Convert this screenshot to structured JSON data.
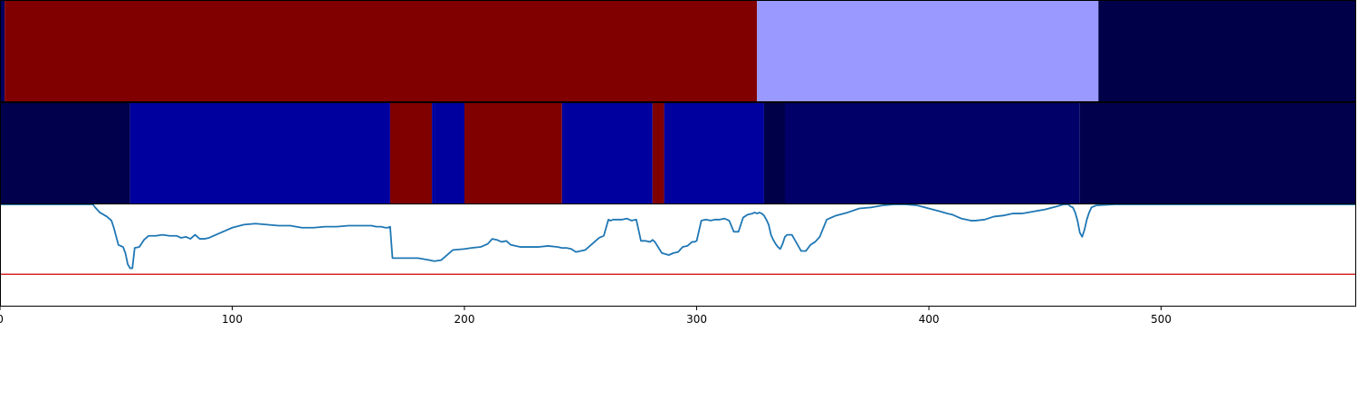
{
  "chart_data": {
    "type": "heatmap",
    "title": "",
    "xlabel": "",
    "ylabel": "",
    "xlim": [
      0,
      584
    ],
    "xticks": [
      0,
      100,
      200,
      300,
      400,
      500
    ],
    "xtick_labels": [
      "0",
      "100",
      "200",
      "300",
      "400",
      "500"
    ],
    "segment_rows": [
      {
        "name": "",
        "segments": [
          {
            "start": 0,
            "end": 2,
            "color": "#000060"
          },
          {
            "start": 2,
            "end": 326,
            "color": "#800000"
          },
          {
            "start": 326,
            "end": 473,
            "color": "#9999ff"
          },
          {
            "start": 473,
            "end": 584,
            "color": "#000048"
          }
        ]
      },
      {
        "name": "",
        "segments": [
          {
            "start": 0,
            "end": 56,
            "color": "#00004c"
          },
          {
            "start": 56,
            "end": 168,
            "color": "#00009e"
          },
          {
            "start": 168,
            "end": 186,
            "color": "#800000"
          },
          {
            "start": 186,
            "end": 187.5,
            "color": "#00009e"
          },
          {
            "start": 187.5,
            "end": 200,
            "color": "#00009e"
          },
          {
            "start": 200,
            "end": 242,
            "color": "#800000"
          },
          {
            "start": 242,
            "end": 281,
            "color": "#00009e"
          },
          {
            "start": 281,
            "end": 286,
            "color": "#800000"
          },
          {
            "start": 286,
            "end": 329,
            "color": "#00009e"
          },
          {
            "start": 329,
            "end": 338,
            "color": "#000048"
          },
          {
            "start": 338,
            "end": 465,
            "color": "#000068"
          },
          {
            "start": 465,
            "end": 584,
            "color": "#00004c"
          }
        ]
      }
    ],
    "line_panel": {
      "ylim": [
        0,
        1
      ],
      "threshold": {
        "value": 0.31,
        "color": "#d62728"
      },
      "series": [
        {
          "name": "",
          "color": "#1f77b4",
          "x": [
            0,
            40,
            41,
            43,
            46,
            48,
            49,
            51,
            53,
            54,
            55,
            56,
            57,
            58,
            60,
            62,
            64,
            67,
            70,
            73,
            76,
            78,
            80,
            82,
            84,
            86,
            88,
            90,
            95,
            100,
            105,
            110,
            115,
            120,
            125,
            130,
            135,
            140,
            145,
            150,
            155,
            160,
            162,
            164,
            166,
            167,
            168,
            169,
            170,
            175,
            180,
            185,
            187,
            190,
            195,
            200,
            203,
            207,
            210,
            212,
            214,
            216,
            218,
            220,
            224,
            228,
            232,
            236,
            240,
            242,
            244,
            246,
            248,
            252,
            256,
            258,
            260,
            262,
            263,
            264,
            266,
            268,
            270,
            272,
            274,
            276,
            278,
            280,
            281,
            282,
            285,
            288,
            290,
            292,
            294,
            296,
            298,
            299,
            300,
            302,
            304,
            306,
            308,
            310,
            312,
            314,
            316,
            318,
            320,
            322,
            324,
            325,
            326,
            327,
            328,
            329,
            330,
            331,
            332,
            333,
            334,
            335,
            336,
            337,
            338,
            339,
            340,
            341,
            342,
            343,
            345,
            347,
            349,
            351,
            353,
            356,
            360,
            365,
            370,
            375,
            380,
            385,
            390,
            395,
            400,
            405,
            408,
            410,
            412,
            414,
            416,
            418,
            420,
            424,
            428,
            432,
            436,
            440,
            445,
            450,
            455,
            458,
            460,
            461,
            462,
            463,
            464,
            465,
            466,
            467,
            468,
            469,
            470,
            472,
            480,
            584
          ],
          "y": [
            1.0,
            1.0,
            0.97,
            0.92,
            0.88,
            0.84,
            0.77,
            0.6,
            0.58,
            0.52,
            0.41,
            0.37,
            0.37,
            0.57,
            0.58,
            0.65,
            0.69,
            0.69,
            0.7,
            0.69,
            0.69,
            0.67,
            0.68,
            0.66,
            0.7,
            0.66,
            0.66,
            0.67,
            0.72,
            0.77,
            0.8,
            0.81,
            0.8,
            0.79,
            0.79,
            0.77,
            0.77,
            0.78,
            0.78,
            0.79,
            0.79,
            0.79,
            0.78,
            0.78,
            0.77,
            0.77,
            0.78,
            0.47,
            0.47,
            0.47,
            0.47,
            0.45,
            0.44,
            0.45,
            0.55,
            0.56,
            0.57,
            0.58,
            0.61,
            0.66,
            0.65,
            0.63,
            0.64,
            0.6,
            0.58,
            0.58,
            0.58,
            0.59,
            0.58,
            0.57,
            0.57,
            0.56,
            0.53,
            0.55,
            0.63,
            0.67,
            0.69,
            0.85,
            0.84,
            0.85,
            0.85,
            0.85,
            0.86,
            0.84,
            0.85,
            0.64,
            0.64,
            0.63,
            0.65,
            0.63,
            0.52,
            0.5,
            0.52,
            0.53,
            0.58,
            0.59,
            0.63,
            0.63,
            0.64,
            0.84,
            0.85,
            0.84,
            0.85,
            0.85,
            0.86,
            0.84,
            0.73,
            0.73,
            0.87,
            0.9,
            0.91,
            0.92,
            0.91,
            0.92,
            0.91,
            0.89,
            0.85,
            0.8,
            0.7,
            0.65,
            0.61,
            0.58,
            0.56,
            0.61,
            0.68,
            0.7,
            0.7,
            0.7,
            0.66,
            0.62,
            0.54,
            0.54,
            0.6,
            0.63,
            0.68,
            0.85,
            0.89,
            0.92,
            0.96,
            0.97,
            0.99,
            1.0,
            1.0,
            0.99,
            0.96,
            0.93,
            0.91,
            0.9,
            0.88,
            0.86,
            0.85,
            0.84,
            0.84,
            0.85,
            0.88,
            0.89,
            0.91,
            0.91,
            0.93,
            0.95,
            0.98,
            1.0,
            1.0,
            0.98,
            0.97,
            0.92,
            0.84,
            0.72,
            0.68,
            0.75,
            0.85,
            0.92,
            0.97,
            0.99,
            1.0,
            1.0
          ]
        }
      ]
    }
  }
}
